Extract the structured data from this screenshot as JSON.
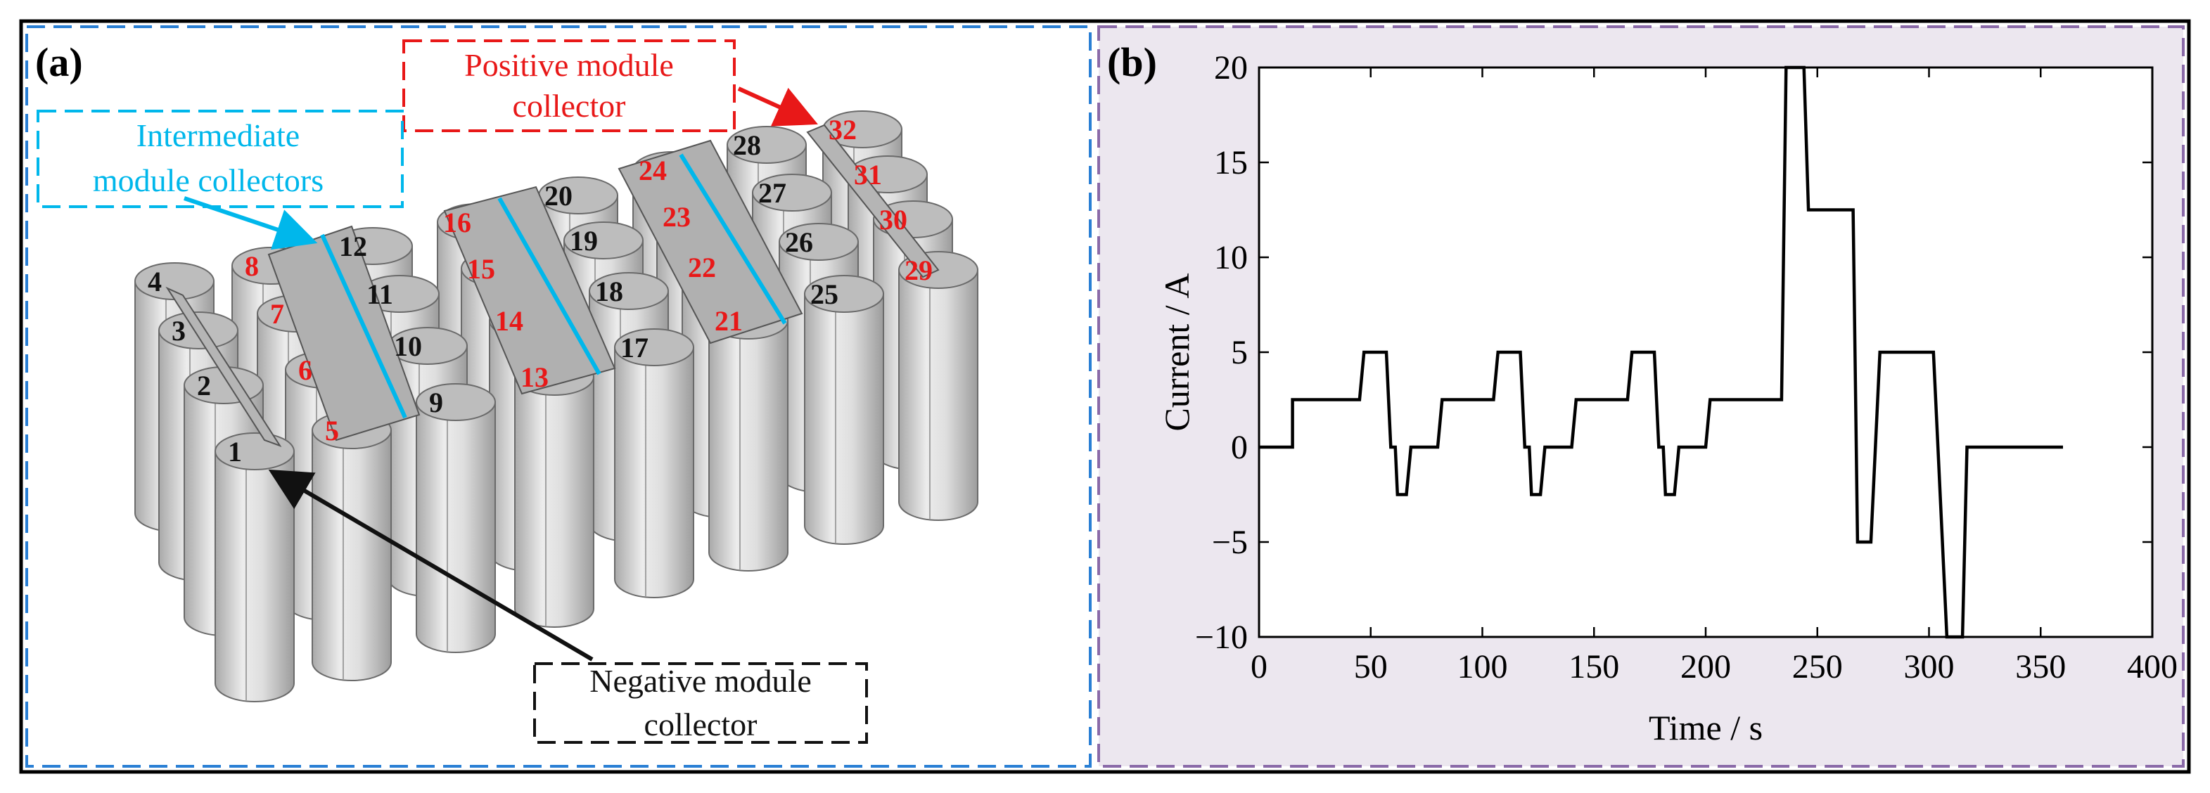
{
  "panel_a": {
    "label": "(a)",
    "callouts": {
      "positive": [
        "Positive module",
        "collector"
      ],
      "intermediate": [
        "Intermediate",
        "module collectors"
      ],
      "negative": [
        "Negative module",
        "collector"
      ]
    },
    "cells": [
      {
        "n": "1",
        "color": "black"
      },
      {
        "n": "2",
        "color": "black"
      },
      {
        "n": "3",
        "color": "black"
      },
      {
        "n": "4",
        "color": "black"
      },
      {
        "n": "5",
        "color": "red"
      },
      {
        "n": "6",
        "color": "red"
      },
      {
        "n": "7",
        "color": "red"
      },
      {
        "n": "8",
        "color": "red"
      },
      {
        "n": "9",
        "color": "black"
      },
      {
        "n": "10",
        "color": "black"
      },
      {
        "n": "11",
        "color": "black"
      },
      {
        "n": "12",
        "color": "black"
      },
      {
        "n": "13",
        "color": "red"
      },
      {
        "n": "14",
        "color": "red"
      },
      {
        "n": "15",
        "color": "red"
      },
      {
        "n": "16",
        "color": "red"
      },
      {
        "n": "17",
        "color": "black"
      },
      {
        "n": "18",
        "color": "black"
      },
      {
        "n": "19",
        "color": "black"
      },
      {
        "n": "20",
        "color": "black"
      },
      {
        "n": "21",
        "color": "red"
      },
      {
        "n": "22",
        "color": "red"
      },
      {
        "n": "23",
        "color": "red"
      },
      {
        "n": "24",
        "color": "red"
      },
      {
        "n": "25",
        "color": "black"
      },
      {
        "n": "26",
        "color": "black"
      },
      {
        "n": "27",
        "color": "black"
      },
      {
        "n": "28",
        "color": "black"
      },
      {
        "n": "29",
        "color": "red"
      },
      {
        "n": "30",
        "color": "red"
      },
      {
        "n": "31",
        "color": "red"
      },
      {
        "n": "32",
        "color": "red"
      }
    ]
  },
  "panel_b": {
    "label": "(b)"
  },
  "colors": {
    "panel_a_border": "#2a7fd4",
    "panel_b_border": "#8a6aa8",
    "panel_b_bg": "#ece7ef",
    "intermediate": "#00b7eb",
    "positive": "#e81818",
    "negative": "#111111",
    "cell_fill": "#dcdcdc",
    "cell_top": "#bdbdbd"
  },
  "chart_data": {
    "type": "line",
    "title": "",
    "xlabel": "Time / s",
    "ylabel": "Current / A",
    "xlim": [
      0,
      400
    ],
    "ylim": [
      -10,
      20
    ],
    "xticks": [
      0,
      50,
      100,
      150,
      200,
      250,
      300,
      350,
      400
    ],
    "yticks": [
      20,
      15,
      10,
      5,
      0,
      -5,
      -10
    ],
    "tick_labels_x": [
      "0",
      "50",
      "100",
      "150",
      "200",
      "250",
      "300",
      "350",
      "400"
    ],
    "tick_labels_y": [
      "20",
      "15",
      "10",
      "5",
      "0",
      "−5",
      "−10"
    ],
    "grid": false,
    "series": [
      {
        "name": "Current",
        "x": [
          0,
          15,
          15,
          45,
          47,
          57,
          59,
          61,
          62,
          66,
          68,
          80,
          82,
          105,
          107,
          117,
          119,
          121,
          122,
          126,
          128,
          140,
          142,
          165,
          167,
          177,
          179,
          181,
          182,
          186,
          188,
          200,
          202,
          234,
          236,
          244,
          246,
          266,
          268,
          274,
          276,
          278,
          280,
          302,
          304,
          308,
          310,
          315,
          317,
          360
        ],
        "y": [
          0,
          0,
          2.5,
          2.5,
          5,
          5,
          0,
          0,
          -2.5,
          -2.5,
          0,
          0,
          2.5,
          2.5,
          5,
          5,
          0,
          0,
          -2.5,
          -2.5,
          0,
          0,
          2.5,
          2.5,
          5,
          5,
          0,
          0,
          -2.5,
          -2.5,
          0,
          0,
          2.5,
          2.5,
          20,
          20,
          12.5,
          12.5,
          -5,
          -5,
          0,
          5,
          5,
          5,
          0,
          -10,
          -10,
          -10,
          0,
          0
        ]
      }
    ]
  }
}
